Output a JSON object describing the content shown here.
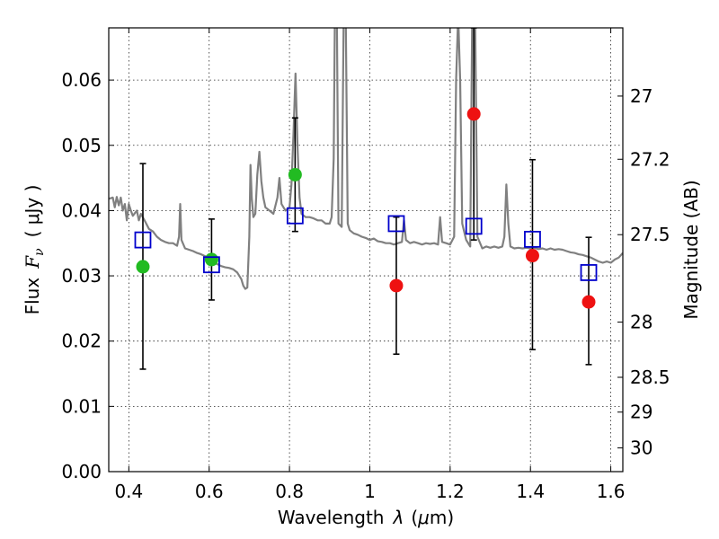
{
  "chart_data": {
    "type": "scatter",
    "xlabel_prefix": "Wavelength",
    "xlabel_symbol": "λ",
    "xlabel_unit_open": "(",
    "xlabel_unit_mu": "μ",
    "xlabel_unit_rest": "m)",
    "ylabel_prefix": "Flux",
    "ylabel_symbol": "F",
    "ylabel_sub": "ν",
    "ylabel_unit": "( μJy )",
    "y2label": "Magnitude (AB)",
    "xlim": [
      0.35,
      1.63
    ],
    "ylim": [
      0.0,
      0.068
    ],
    "xticks": [
      0.4,
      0.6,
      0.8,
      1.0,
      1.2,
      1.4,
      1.6
    ],
    "xtick_labels": [
      "0.4",
      "0.6",
      "0.8",
      "1",
      "1.2",
      "1.4",
      "1.6"
    ],
    "yticks": [
      0.0,
      0.01,
      0.02,
      0.03,
      0.04,
      0.05,
      0.06
    ],
    "ytick_labels": [
      "0.00",
      "0.01",
      "0.02",
      "0.03",
      "0.04",
      "0.05",
      "0.06"
    ],
    "y2ticks": [
      27.0,
      27.2,
      27.5,
      28.0,
      28.5,
      29.0,
      30.0
    ],
    "y2tick_labels": [
      "27",
      "27.2",
      "27.5",
      "28",
      "28.5",
      "29",
      "30"
    ],
    "grid": true,
    "colors": {
      "spectrum": "#808080",
      "green": "#22bb22",
      "red": "#ee1111",
      "model_square": "#0000cc",
      "errorbar": "#000000"
    },
    "spectrum": [
      [
        0.35,
        0.0418
      ],
      [
        0.36,
        0.042
      ],
      [
        0.365,
        0.0405
      ],
      [
        0.37,
        0.0421
      ],
      [
        0.375,
        0.0408
      ],
      [
        0.38,
        0.042
      ],
      [
        0.385,
        0.04
      ],
      [
        0.39,
        0.041
      ],
      [
        0.395,
        0.0385
      ],
      [
        0.4,
        0.041
      ],
      [
        0.405,
        0.04
      ],
      [
        0.41,
        0.0392
      ],
      [
        0.42,
        0.04
      ],
      [
        0.425,
        0.0385
      ],
      [
        0.43,
        0.0395
      ],
      [
        0.44,
        0.0384
      ],
      [
        0.45,
        0.0372
      ],
      [
        0.46,
        0.0368
      ],
      [
        0.47,
        0.036
      ],
      [
        0.48,
        0.0355
      ],
      [
        0.49,
        0.0352
      ],
      [
        0.5,
        0.035
      ],
      [
        0.51,
        0.035
      ],
      [
        0.52,
        0.0346
      ],
      [
        0.525,
        0.036
      ],
      [
        0.528,
        0.041
      ],
      [
        0.531,
        0.0355
      ],
      [
        0.54,
        0.0342
      ],
      [
        0.55,
        0.034
      ],
      [
        0.56,
        0.0338
      ],
      [
        0.57,
        0.0335
      ],
      [
        0.58,
        0.0333
      ],
      [
        0.59,
        0.033
      ],
      [
        0.6,
        0.0325
      ],
      [
        0.61,
        0.032
      ],
      [
        0.62,
        0.0318
      ],
      [
        0.63,
        0.0315
      ],
      [
        0.64,
        0.0313
      ],
      [
        0.65,
        0.0312
      ],
      [
        0.66,
        0.031
      ],
      [
        0.67,
        0.0305
      ],
      [
        0.68,
        0.0295
      ],
      [
        0.685,
        0.0285
      ],
      [
        0.69,
        0.028
      ],
      [
        0.695,
        0.0282
      ],
      [
        0.7,
        0.036
      ],
      [
        0.703,
        0.047
      ],
      [
        0.706,
        0.042
      ],
      [
        0.71,
        0.039
      ],
      [
        0.715,
        0.0395
      ],
      [
        0.72,
        0.0455
      ],
      [
        0.725,
        0.049
      ],
      [
        0.73,
        0.0445
      ],
      [
        0.735,
        0.042
      ],
      [
        0.74,
        0.0405
      ],
      [
        0.75,
        0.04
      ],
      [
        0.76,
        0.0395
      ],
      [
        0.77,
        0.042
      ],
      [
        0.775,
        0.045
      ],
      [
        0.78,
        0.041
      ],
      [
        0.79,
        0.04
      ],
      [
        0.8,
        0.0405
      ],
      [
        0.805,
        0.044
      ],
      [
        0.81,
        0.052
      ],
      [
        0.815,
        0.061
      ],
      [
        0.82,
        0.05
      ],
      [
        0.825,
        0.042
      ],
      [
        0.83,
        0.0395
      ],
      [
        0.84,
        0.039
      ],
      [
        0.85,
        0.039
      ],
      [
        0.86,
        0.0388
      ],
      [
        0.87,
        0.0385
      ],
      [
        0.88,
        0.0385
      ],
      [
        0.89,
        0.038
      ],
      [
        0.9,
        0.038
      ],
      [
        0.905,
        0.039
      ],
      [
        0.91,
        0.048
      ],
      [
        0.913,
        0.07
      ],
      [
        0.918,
        0.07
      ],
      [
        0.922,
        0.038
      ],
      [
        0.93,
        0.0375
      ],
      [
        0.935,
        0.07
      ],
      [
        0.94,
        0.07
      ],
      [
        0.945,
        0.038
      ],
      [
        0.95,
        0.037
      ],
      [
        0.96,
        0.0365
      ],
      [
        0.97,
        0.0363
      ],
      [
        0.98,
        0.036
      ],
      [
        0.99,
        0.0358
      ],
      [
        1.0,
        0.0355
      ],
      [
        1.01,
        0.0357
      ],
      [
        1.02,
        0.0353
      ],
      [
        1.03,
        0.0352
      ],
      [
        1.04,
        0.035
      ],
      [
        1.05,
        0.035
      ],
      [
        1.06,
        0.0348
      ],
      [
        1.07,
        0.035
      ],
      [
        1.08,
        0.0352
      ],
      [
        1.085,
        0.0385
      ],
      [
        1.09,
        0.0355
      ],
      [
        1.1,
        0.035
      ],
      [
        1.11,
        0.0352
      ],
      [
        1.12,
        0.035
      ],
      [
        1.13,
        0.0348
      ],
      [
        1.14,
        0.035
      ],
      [
        1.15,
        0.0349
      ],
      [
        1.16,
        0.035
      ],
      [
        1.17,
        0.0348
      ],
      [
        1.175,
        0.039
      ],
      [
        1.18,
        0.0352
      ],
      [
        1.19,
        0.035
      ],
      [
        1.2,
        0.0348
      ],
      [
        1.21,
        0.036
      ],
      [
        1.215,
        0.06
      ],
      [
        1.22,
        0.07
      ],
      [
        1.225,
        0.06
      ],
      [
        1.23,
        0.038
      ],
      [
        1.24,
        0.0355
      ],
      [
        1.25,
        0.0345
      ],
      [
        1.255,
        0.07
      ],
      [
        1.262,
        0.07
      ],
      [
        1.268,
        0.036
      ],
      [
        1.28,
        0.0342
      ],
      [
        1.29,
        0.0345
      ],
      [
        1.3,
        0.0343
      ],
      [
        1.31,
        0.0345
      ],
      [
        1.32,
        0.0343
      ],
      [
        1.33,
        0.0345
      ],
      [
        1.335,
        0.036
      ],
      [
        1.34,
        0.044
      ],
      [
        1.345,
        0.038
      ],
      [
        1.35,
        0.0345
      ],
      [
        1.36,
        0.0342
      ],
      [
        1.37,
        0.0343
      ],
      [
        1.38,
        0.0342
      ],
      [
        1.39,
        0.0343
      ],
      [
        1.4,
        0.0342
      ],
      [
        1.41,
        0.0343
      ],
      [
        1.42,
        0.0341
      ],
      [
        1.43,
        0.0342
      ],
      [
        1.44,
        0.034
      ],
      [
        1.45,
        0.0342
      ],
      [
        1.46,
        0.034
      ],
      [
        1.47,
        0.0341
      ],
      [
        1.48,
        0.034
      ],
      [
        1.49,
        0.0338
      ],
      [
        1.5,
        0.0336
      ],
      [
        1.51,
        0.0335
      ],
      [
        1.52,
        0.0333
      ],
      [
        1.53,
        0.0332
      ],
      [
        1.54,
        0.033
      ],
      [
        1.55,
        0.0328
      ],
      [
        1.56,
        0.0325
      ],
      [
        1.57,
        0.0322
      ],
      [
        1.58,
        0.032
      ],
      [
        1.59,
        0.0322
      ],
      [
        1.6,
        0.032
      ],
      [
        1.61,
        0.0325
      ],
      [
        1.62,
        0.0328
      ],
      [
        1.63,
        0.0335
      ]
    ],
    "errorbars": [
      {
        "x": 0.435,
        "low": 0.0157,
        "high": 0.0472
      },
      {
        "x": 0.606,
        "low": 0.0263,
        "high": 0.0387
      },
      {
        "x": 0.814,
        "low": 0.0368,
        "high": 0.0542
      },
      {
        "x": 1.066,
        "low": 0.018,
        "high": 0.039
      },
      {
        "x": 1.259,
        "low": 0.0355,
        "high": 0.068
      },
      {
        "x": 1.405,
        "low": 0.0187,
        "high": 0.0478
      },
      {
        "x": 1.545,
        "low": 0.0164,
        "high": 0.0359
      }
    ],
    "observed_green": [
      {
        "x": 0.435,
        "y": 0.0314
      },
      {
        "x": 0.606,
        "y": 0.0325
      },
      {
        "x": 0.814,
        "y": 0.0455
      }
    ],
    "observed_red": [
      {
        "x": 1.066,
        "y": 0.0285
      },
      {
        "x": 1.259,
        "y": 0.0548
      },
      {
        "x": 1.405,
        "y": 0.0331
      },
      {
        "x": 1.545,
        "y": 0.026
      }
    ],
    "model_squares": [
      {
        "x": 0.435,
        "y": 0.0355
      },
      {
        "x": 0.606,
        "y": 0.0317
      },
      {
        "x": 0.814,
        "y": 0.0392
      },
      {
        "x": 1.066,
        "y": 0.038
      },
      {
        "x": 1.259,
        "y": 0.0376
      },
      {
        "x": 1.405,
        "y": 0.0356
      },
      {
        "x": 1.545,
        "y": 0.0305
      }
    ]
  }
}
